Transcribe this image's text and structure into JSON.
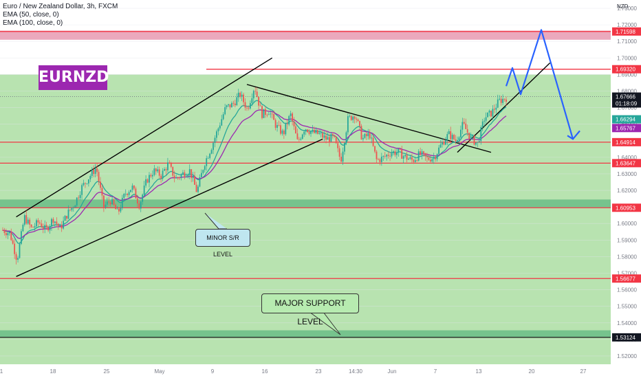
{
  "header": {
    "title": "Euro / New Zealand Dollar, 3h, FXCM",
    "indicators": [
      "EMA (50, close, 0)",
      "EMA (100, close, 0)"
    ],
    "currency": "NZD"
  },
  "badge": "EURNZD",
  "annotations": {
    "minor": "MINOR S/R LEVEL",
    "major": "MAJOR SUPPORT LEVEL"
  },
  "colors": {
    "background_green": "#b8e3b0",
    "level_line": "#f23645",
    "resistance_zone": "#e9a0b6",
    "support_zone": "#6fbf8a",
    "ema50": "#26a69a",
    "ema100": "#9c27b0",
    "projection": "#2962ff",
    "candle_up": "#26a69a",
    "candle_down": "#ef5350",
    "badge": "#9c27b0"
  },
  "chart_data": {
    "type": "candlestick",
    "symbol": "EURNZD",
    "timeframe": "3h",
    "ylim": [
      1.515,
      1.735
    ],
    "y_ticks": [
      "1.73000",
      "1.72000",
      "1.71000",
      "1.70000",
      "1.69000",
      "1.68000",
      "1.67000",
      "1.66000",
      "1.65000",
      "1.64000",
      "1.63000",
      "1.62000",
      "1.61000",
      "1.60000",
      "1.59000",
      "1.58000",
      "1.57000",
      "1.56000",
      "1.55000",
      "1.54000",
      "1.53000",
      "1.52000"
    ],
    "x_ticks": [
      "1",
      "18",
      "25",
      "May",
      "9",
      "16",
      "23",
      "14:30",
      "Jun",
      "7",
      "13",
      "20",
      "27"
    ],
    "current_price": {
      "value": "1.67666",
      "countdown": "01:18:09"
    },
    "levels": [
      {
        "value": "1.71598",
        "kind": "resistance-zone"
      },
      {
        "value": "1.69320",
        "kind": "resistance"
      },
      {
        "value": "1.64914",
        "kind": "support"
      },
      {
        "value": "1.63647",
        "kind": "support"
      },
      {
        "value": "1.60953",
        "kind": "minor-zone"
      },
      {
        "value": "1.56677",
        "kind": "support"
      },
      {
        "value": "1.53124",
        "kind": "major-zone"
      }
    ],
    "ema_labels": [
      {
        "name": "EMA 50",
        "value": "1.66294"
      },
      {
        "name": "EMA 100",
        "value": "1.65767"
      }
    ],
    "path": [
      1.596,
      1.594,
      1.578,
      1.604,
      1.597,
      1.601,
      1.596,
      1.603,
      1.597,
      1.606,
      1.612,
      1.622,
      1.628,
      1.634,
      1.61,
      1.614,
      1.606,
      1.618,
      1.622,
      1.611,
      1.626,
      1.632,
      1.629,
      1.636,
      1.627,
      1.63,
      1.632,
      1.619,
      1.636,
      1.646,
      1.658,
      1.67,
      1.672,
      1.678,
      1.669,
      1.683,
      1.666,
      1.668,
      1.659,
      1.654,
      1.666,
      1.649,
      1.658,
      1.655,
      1.654,
      1.651,
      1.652,
      1.638,
      1.663,
      1.666,
      1.651,
      1.654,
      1.638,
      1.64,
      1.643,
      1.643,
      1.64,
      1.638,
      1.642,
      1.639,
      1.64,
      1.648,
      1.654,
      1.65,
      1.66,
      1.652,
      1.648,
      1.664,
      1.667,
      1.674,
      1.676
    ]
  }
}
